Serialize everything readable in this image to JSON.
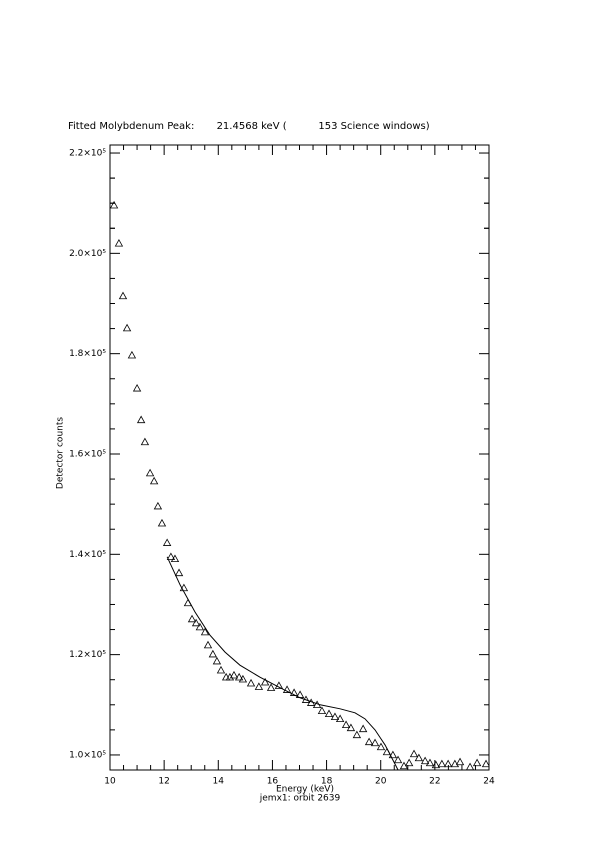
{
  "chart_data": {
    "type": "scatter",
    "title": "Fitted Molybdenum Peak:       21.4568 keV (          153 Science windows)",
    "x_label": "Energy (keV)",
    "y_label": "Detector counts",
    "subtitle": "jemx1: orbit 2639",
    "xlim": [
      10,
      24
    ],
    "xticks": [
      10,
      12,
      14,
      16,
      18,
      20,
      22,
      24
    ],
    "ylim": [
      97000,
      221600
    ],
    "yticks": [
      {
        "value": 100000,
        "label": "1.0×10⁵"
      },
      {
        "value": 120000,
        "label": "1.2×10⁵"
      },
      {
        "value": 140000,
        "label": "1.4×10⁵"
      },
      {
        "value": 160000,
        "label": "1.6×10⁵"
      },
      {
        "value": 180000,
        "label": "1.8×10⁵"
      },
      {
        "value": 200000,
        "label": "2.0×10⁵"
      },
      {
        "value": 220000,
        "label": "2.2×10⁵"
      }
    ],
    "series": [
      {
        "style": "marker",
        "marker": "triangle",
        "color": "#000000",
        "x": [
          10.15,
          10.33,
          10.48,
          10.63,
          10.81,
          11.0,
          11.15,
          11.29,
          11.48,
          11.63,
          11.77,
          11.92,
          12.11,
          12.25,
          12.4,
          12.55,
          12.73,
          12.88,
          13.03,
          13.18,
          13.32,
          13.51,
          13.62,
          13.8,
          13.95,
          14.1,
          14.29,
          14.43,
          14.58,
          14.77,
          14.91,
          15.21,
          15.5,
          15.73,
          15.95,
          16.24,
          16.54,
          16.8,
          17.02,
          17.24,
          17.43,
          17.65,
          17.83,
          18.09,
          18.31,
          18.5,
          18.72,
          18.9,
          19.12,
          19.35,
          19.57,
          19.79,
          20.01,
          20.23,
          20.45,
          20.64,
          20.86,
          21.05,
          21.23,
          21.41,
          21.64,
          21.82,
          22.04,
          22.26,
          22.49,
          22.74,
          22.93,
          23.3,
          23.56,
          23.89
        ],
        "values": [
          209600,
          202000,
          191500,
          185100,
          179700,
          173100,
          166800,
          162400,
          156200,
          154600,
          149600,
          146200,
          142300,
          139500,
          139100,
          136300,
          133300,
          130300,
          127100,
          126300,
          125500,
          124500,
          121900,
          120100,
          118700,
          116900,
          115500,
          115500,
          115900,
          115500,
          115100,
          114300,
          113600,
          114500,
          113400,
          113800,
          113000,
          112400,
          112000,
          111000,
          110400,
          110000,
          108800,
          108200,
          107600,
          107200,
          106000,
          105400,
          104000,
          105200,
          102600,
          102400,
          101600,
          100600,
          100000,
          99000,
          97800,
          98400,
          100200,
          99400,
          98800,
          98400,
          98000,
          98200,
          98200,
          98200,
          98600,
          97600,
          98400,
          98200
        ]
      },
      {
        "style": "line",
        "color": "#000000",
        "x": [
          12.11,
          12.59,
          13.14,
          13.69,
          14.25,
          14.8,
          15.54,
          16.28,
          17.02,
          17.76,
          18.5,
          19.05,
          19.42,
          19.79,
          20.16,
          20.45,
          20.64
        ],
        "values": [
          139500,
          133900,
          128500,
          123900,
          120500,
          117900,
          115500,
          113400,
          111400,
          110000,
          109200,
          108400,
          107200,
          105000,
          102000,
          99000,
          97000
        ]
      }
    ]
  }
}
